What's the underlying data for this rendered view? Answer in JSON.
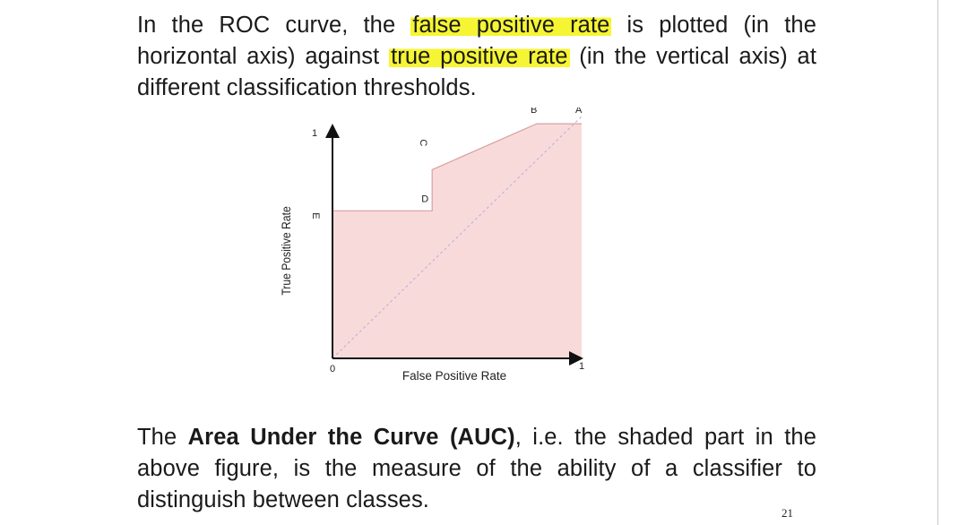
{
  "top_paragraph": {
    "part1": "In the ROC curve, the ",
    "highlight1": "false positive rate",
    "part2": " is plotted (in the horizontal axis) against ",
    "highlight2": "true positive rate",
    "part3": " (in the vertical axis) at different classification thresholds."
  },
  "bottom_paragraph": {
    "part1": "The ",
    "bold": "Area Under the Curve (AUC)",
    "part2": ", i.e. the shaded part in the above figure, is the measure of the ability of a classifier to distinguish between classes."
  },
  "page_number": "21",
  "highlight_color": "#f6f533",
  "chart_data": {
    "type": "area",
    "title": "",
    "xlabel": "False Positive Rate",
    "ylabel": "True Positive Rate",
    "xlim": [
      0,
      1
    ],
    "ylim": [
      0,
      1
    ],
    "x_tick_labels": [
      "0",
      "1"
    ],
    "y_tick_labels": [
      "1"
    ],
    "points": [
      {
        "label": "E",
        "x": 0.0,
        "y": 0.61
      },
      {
        "label": "D",
        "x": 0.4,
        "y": 0.61
      },
      {
        "label": "C",
        "x": 0.4,
        "y": 0.78
      },
      {
        "label": "B",
        "x": 0.82,
        "y": 0.97
      },
      {
        "label": "A",
        "x": 1.0,
        "y": 0.97
      }
    ],
    "diagonal": true,
    "fill_color": "#f9dada",
    "line_color": "#d9a0a0",
    "grid": false
  }
}
